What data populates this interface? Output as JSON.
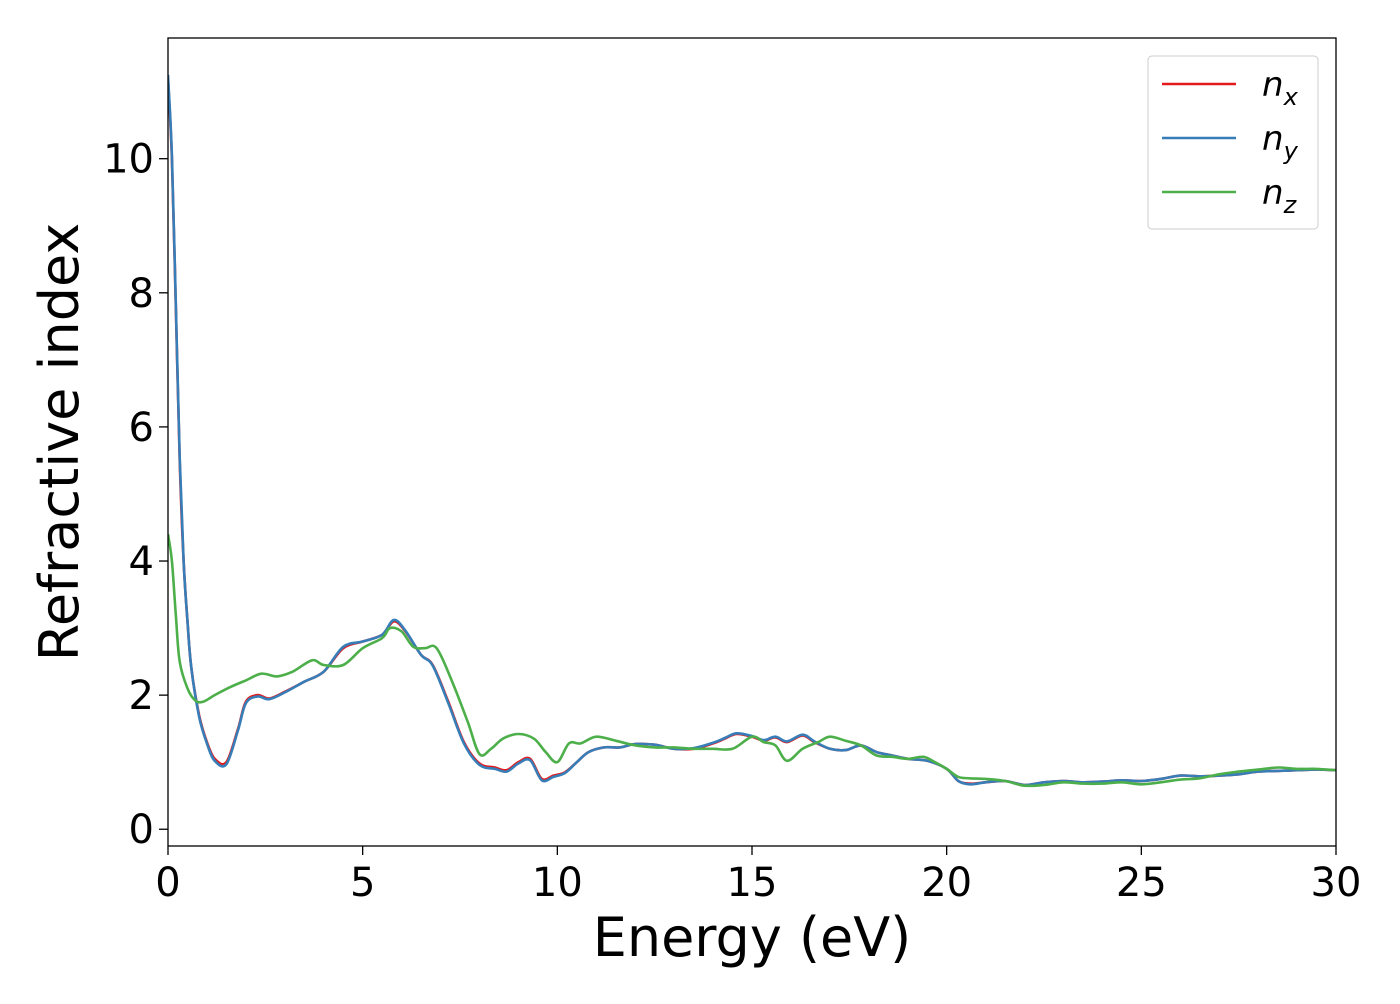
{
  "chart_data": {
    "type": "line",
    "xlabel": "Energy (eV)",
    "ylabel": "Refractive index",
    "xlim": [
      0,
      30
    ],
    "ylim": [
      -0.25,
      11.8
    ],
    "xticks": [
      0,
      5,
      10,
      15,
      20,
      25,
      30
    ],
    "yticks": [
      0,
      2,
      4,
      6,
      8,
      10
    ],
    "grid": false,
    "legend_position": "top-right",
    "series": [
      {
        "name": "n_x",
        "legend_main": "n",
        "legend_sub": "x",
        "color": "#e41a1c",
        "x": [
          0,
          0.1,
          0.2,
          0.3,
          0.4,
          0.5,
          0.6,
          0.8,
          1.0,
          1.2,
          1.5,
          1.8,
          2.0,
          2.3,
          2.6,
          3.0,
          3.5,
          4.0,
          4.5,
          5.0,
          5.5,
          5.8,
          6.1,
          6.5,
          6.8,
          7.2,
          7.6,
          8.0,
          8.4,
          8.7,
          9.0,
          9.3,
          9.6,
          9.9,
          10.2,
          10.5,
          10.8,
          11.2,
          11.6,
          12.0,
          12.5,
          13.0,
          13.5,
          14.0,
          14.3,
          14.6,
          15.0,
          15.3,
          15.6,
          15.9,
          16.3,
          16.6,
          17.0,
          17.4,
          17.8,
          18.2,
          18.6,
          19.0,
          19.5,
          20.0,
          20.3,
          20.6,
          21.0,
          21.5,
          22.0,
          22.5,
          23.0,
          23.5,
          24.0,
          24.5,
          25.0,
          25.5,
          26.0,
          26.5,
          27.0,
          27.5,
          28.0,
          28.5,
          29.0,
          29.5,
          30.0
        ],
        "y": [
          11.2,
          10.0,
          7.8,
          5.5,
          4.0,
          3.1,
          2.4,
          1.7,
          1.3,
          1.05,
          1.0,
          1.5,
          1.9,
          2.0,
          1.95,
          2.05,
          2.2,
          2.35,
          2.7,
          2.8,
          2.9,
          3.1,
          2.95,
          2.6,
          2.45,
          1.9,
          1.3,
          0.98,
          0.92,
          0.88,
          1.0,
          1.05,
          0.75,
          0.8,
          0.85,
          1.0,
          1.15,
          1.22,
          1.22,
          1.27,
          1.26,
          1.2,
          1.2,
          1.28,
          1.35,
          1.42,
          1.38,
          1.32,
          1.37,
          1.3,
          1.4,
          1.3,
          1.2,
          1.18,
          1.25,
          1.15,
          1.1,
          1.05,
          1.02,
          0.9,
          0.72,
          0.68,
          0.7,
          0.72,
          0.66,
          0.7,
          0.72,
          0.7,
          0.71,
          0.73,
          0.72,
          0.75,
          0.8,
          0.79,
          0.8,
          0.82,
          0.86,
          0.87,
          0.88,
          0.89,
          0.88
        ]
      },
      {
        "name": "n_y",
        "legend_main": "n",
        "legend_sub": "y",
        "color": "#377eb8",
        "x": [
          0,
          0.1,
          0.2,
          0.3,
          0.4,
          0.5,
          0.6,
          0.8,
          1.0,
          1.2,
          1.5,
          1.8,
          2.0,
          2.3,
          2.6,
          3.0,
          3.5,
          4.0,
          4.5,
          5.0,
          5.5,
          5.8,
          6.1,
          6.5,
          6.8,
          7.2,
          7.6,
          8.0,
          8.4,
          8.7,
          9.0,
          9.3,
          9.6,
          9.9,
          10.2,
          10.5,
          10.8,
          11.2,
          11.6,
          12.0,
          12.5,
          13.0,
          13.5,
          14.0,
          14.3,
          14.6,
          15.0,
          15.3,
          15.6,
          15.9,
          16.3,
          16.6,
          17.0,
          17.4,
          17.8,
          18.2,
          18.6,
          19.0,
          19.5,
          20.0,
          20.3,
          20.6,
          21.0,
          21.5,
          22.0,
          22.5,
          23.0,
          23.5,
          24.0,
          24.5,
          25.0,
          25.5,
          26.0,
          26.5,
          27.0,
          27.5,
          28.0,
          28.5,
          29.0,
          29.5,
          30.0
        ],
        "y": [
          11.25,
          10.05,
          7.85,
          5.55,
          4.0,
          3.1,
          2.4,
          1.68,
          1.28,
          1.02,
          0.97,
          1.48,
          1.88,
          1.98,
          1.94,
          2.04,
          2.2,
          2.35,
          2.72,
          2.8,
          2.9,
          3.12,
          2.96,
          2.6,
          2.44,
          1.88,
          1.28,
          0.96,
          0.9,
          0.86,
          0.98,
          1.03,
          0.73,
          0.78,
          0.84,
          1.0,
          1.15,
          1.22,
          1.22,
          1.27,
          1.26,
          1.2,
          1.21,
          1.29,
          1.36,
          1.43,
          1.39,
          1.33,
          1.38,
          1.31,
          1.41,
          1.31,
          1.2,
          1.18,
          1.25,
          1.15,
          1.1,
          1.05,
          1.02,
          0.9,
          0.72,
          0.67,
          0.7,
          0.72,
          0.66,
          0.7,
          0.72,
          0.7,
          0.71,
          0.73,
          0.72,
          0.75,
          0.8,
          0.79,
          0.8,
          0.82,
          0.86,
          0.87,
          0.88,
          0.89,
          0.88
        ]
      },
      {
        "name": "n_z",
        "legend_main": "n",
        "legend_sub": "z",
        "color": "#4daf4a",
        "x": [
          0,
          0.1,
          0.2,
          0.3,
          0.5,
          0.7,
          0.9,
          1.2,
          1.6,
          2.0,
          2.4,
          2.8,
          3.2,
          3.7,
          4.0,
          4.5,
          5.0,
          5.5,
          5.7,
          6.0,
          6.3,
          6.6,
          6.9,
          7.3,
          7.7,
          8.0,
          8.3,
          8.6,
          9.0,
          9.4,
          9.7,
          10.0,
          10.3,
          10.6,
          11.0,
          11.5,
          12.0,
          12.5,
          13.0,
          13.5,
          14.0,
          14.5,
          15.0,
          15.3,
          15.6,
          15.9,
          16.3,
          16.7,
          17.0,
          17.4,
          17.8,
          18.2,
          18.6,
          19.0,
          19.4,
          19.7,
          20.0,
          20.3,
          20.6,
          21.0,
          21.5,
          22.0,
          22.5,
          23.0,
          23.5,
          24.0,
          24.5,
          25.0,
          25.5,
          26.0,
          26.5,
          27.0,
          27.5,
          28.0,
          28.5,
          29.0,
          29.5,
          30.0
        ],
        "y": [
          4.4,
          4.0,
          3.2,
          2.5,
          2.1,
          1.92,
          1.9,
          2.0,
          2.12,
          2.22,
          2.32,
          2.28,
          2.35,
          2.52,
          2.45,
          2.45,
          2.7,
          2.85,
          3.0,
          2.95,
          2.72,
          2.7,
          2.7,
          2.2,
          1.6,
          1.12,
          1.2,
          1.35,
          1.42,
          1.35,
          1.15,
          1.0,
          1.28,
          1.28,
          1.38,
          1.32,
          1.25,
          1.22,
          1.22,
          1.2,
          1.2,
          1.2,
          1.38,
          1.3,
          1.25,
          1.02,
          1.2,
          1.3,
          1.38,
          1.32,
          1.25,
          1.1,
          1.08,
          1.05,
          1.08,
          1.0,
          0.9,
          0.78,
          0.76,
          0.75,
          0.72,
          0.65,
          0.66,
          0.7,
          0.68,
          0.68,
          0.7,
          0.67,
          0.7,
          0.74,
          0.76,
          0.82,
          0.86,
          0.89,
          0.92,
          0.9,
          0.9,
          0.88
        ]
      }
    ]
  }
}
